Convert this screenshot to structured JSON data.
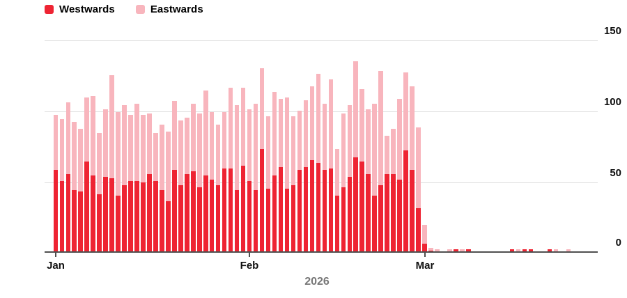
{
  "legend": {
    "items": [
      {
        "label": "Westwards",
        "color": "#ee2433"
      },
      {
        "label": "Eastwards",
        "color": "#f8b5bd"
      }
    ]
  },
  "axes": {
    "y_tick_labels": [
      "150",
      "100",
      "50",
      "0"
    ],
    "x_tick_labels": [
      "Jan",
      "Feb",
      "Mar"
    ],
    "year_label": "2026"
  },
  "chart_data": {
    "type": "bar",
    "stacked": true,
    "title": "",
    "xlabel": "2026",
    "ylabel": "",
    "ylim": [
      0,
      150
    ],
    "y_ticks": [
      0,
      50,
      100,
      150
    ],
    "y_axis_side": "right",
    "grid": true,
    "legend_position": "top-left",
    "x_unit": "day",
    "n_bars": 87,
    "x_tick_labels": [
      "Jan",
      "Feb",
      "Mar"
    ],
    "x_tick_bar_indices": [
      0,
      31,
      59
    ],
    "series": [
      {
        "name": "Westwards",
        "color": "#ee2433",
        "values": [
          58,
          50,
          55,
          44,
          43,
          64,
          54,
          41,
          53,
          52,
          40,
          47,
          50,
          50,
          49,
          55,
          50,
          44,
          36,
          58,
          47,
          55,
          57,
          46,
          54,
          51,
          47,
          59,
          59,
          44,
          61,
          50,
          44,
          73,
          45,
          54,
          60,
          45,
          47,
          58,
          60,
          65,
          63,
          58,
          59,
          40,
          46,
          53,
          67,
          64,
          55,
          40,
          47,
          55,
          55,
          51,
          72,
          58,
          31,
          6,
          1,
          0,
          0,
          0,
          2,
          0,
          2,
          0,
          0,
          0,
          0,
          0,
          0,
          2,
          0,
          2,
          2,
          0,
          0,
          2,
          0,
          0,
          0,
          0,
          0,
          0,
          0
        ]
      },
      {
        "name": "Eastwards",
        "color": "#f8b5bd",
        "values": [
          39,
          44,
          51,
          48,
          44,
          45,
          56,
          43,
          48,
          73,
          59,
          57,
          47,
          55,
          48,
          43,
          34,
          46,
          49,
          49,
          46,
          40,
          48,
          52,
          60,
          48,
          43,
          40,
          57,
          60,
          55,
          51,
          61,
          57,
          51,
          59,
          48,
          64,
          49,
          42,
          47,
          52,
          63,
          47,
          63,
          33,
          52,
          51,
          68,
          51,
          46,
          65,
          81,
          27,
          32,
          57,
          55,
          59,
          57,
          13,
          2,
          2,
          0,
          2,
          0,
          2,
          0,
          0,
          0,
          0,
          0,
          0,
          0,
          0,
          2,
          0,
          0,
          0,
          0,
          0,
          2,
          0,
          2,
          0,
          0,
          0,
          0
        ]
      }
    ]
  }
}
